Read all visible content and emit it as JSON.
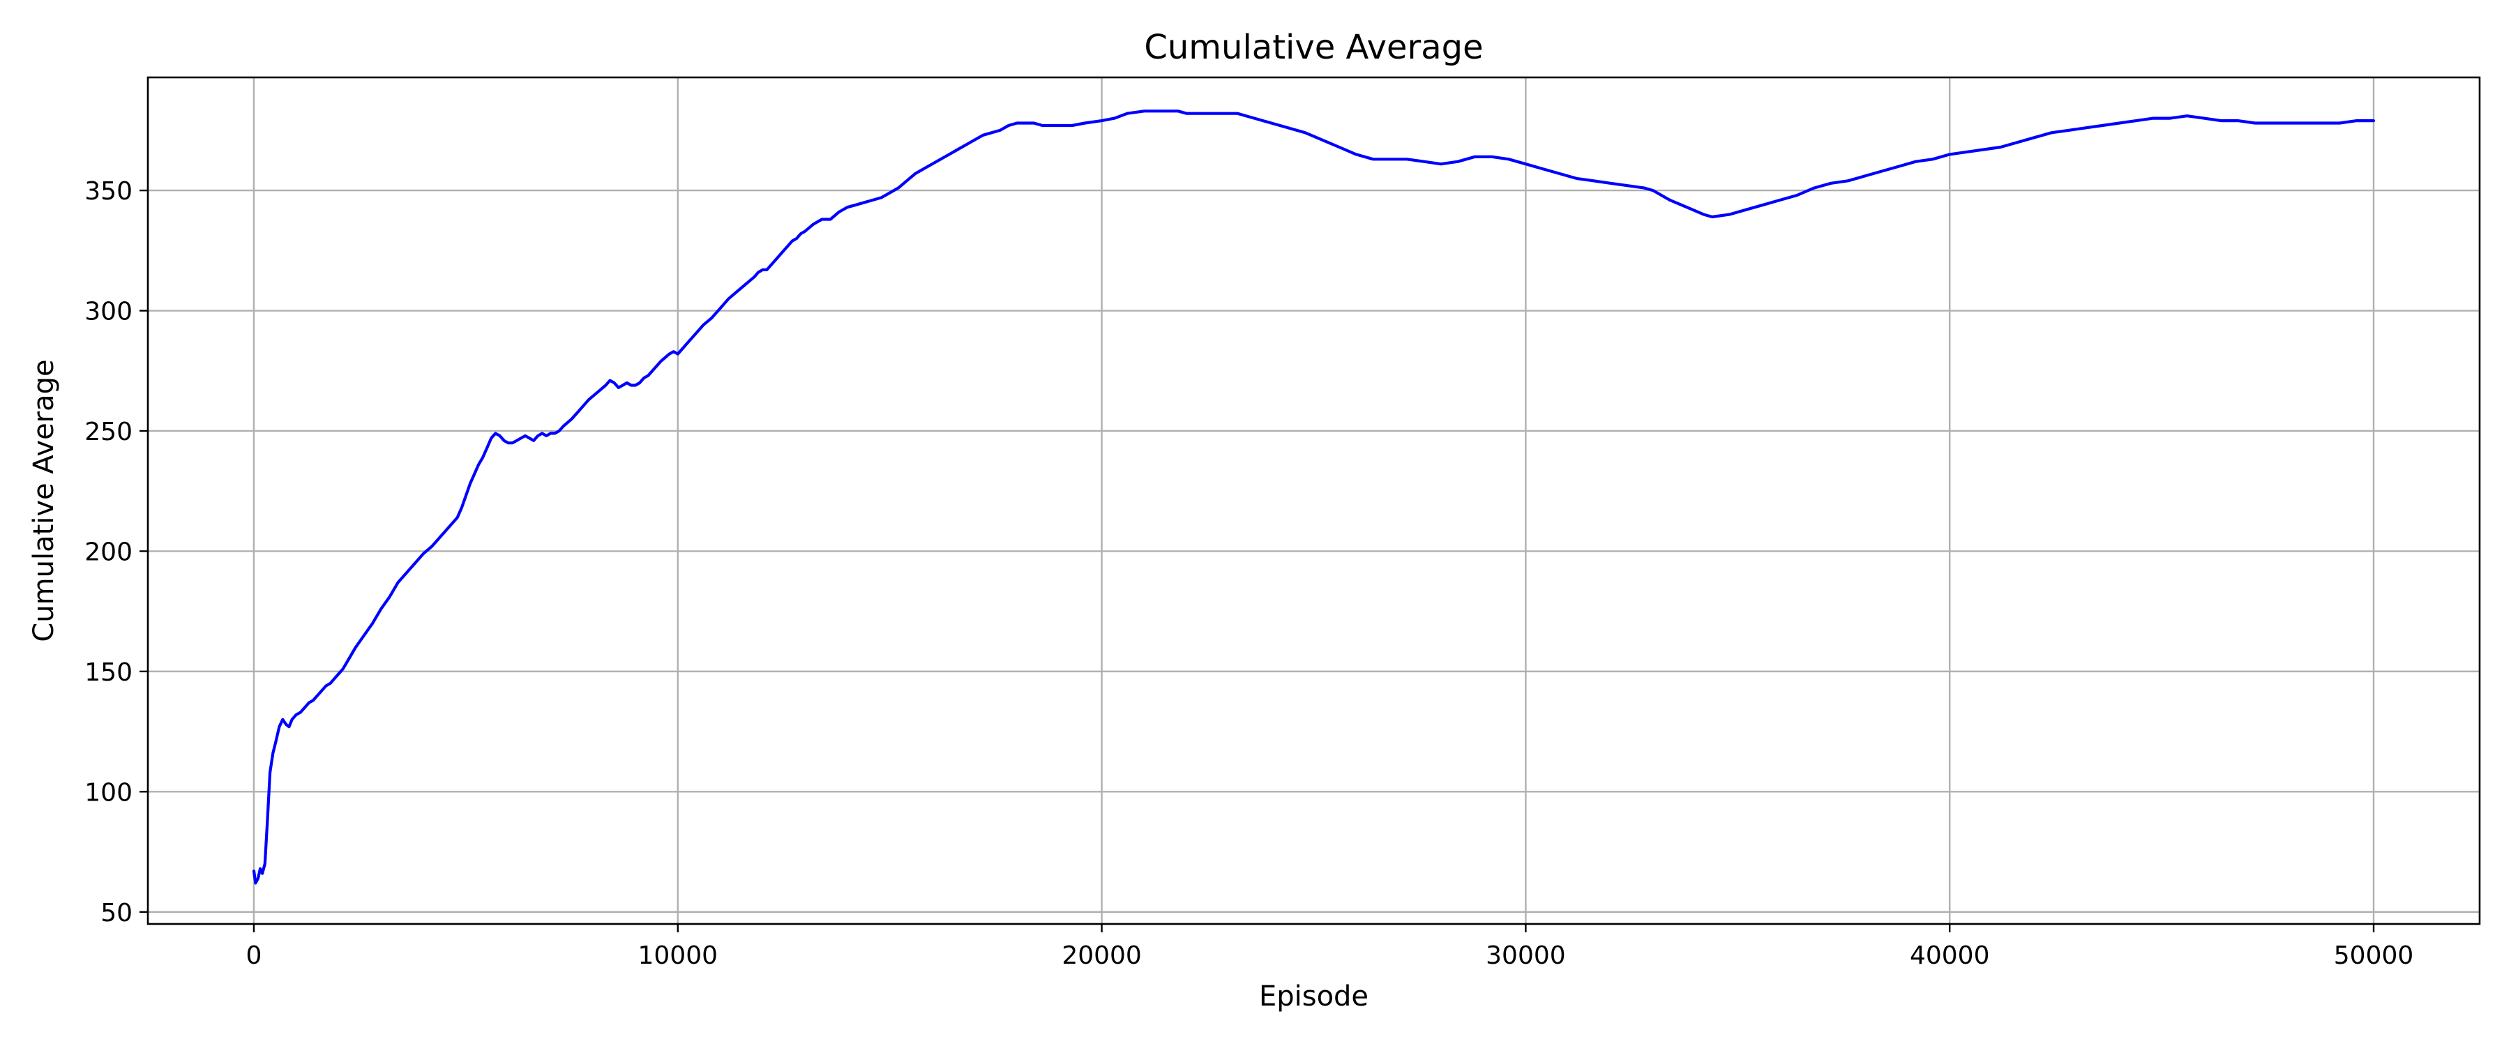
{
  "chart_data": {
    "type": "line",
    "title": "Cumulative Average",
    "xlabel": "Episode",
    "ylabel": "Cumulative Average",
    "xlim": [
      -2500,
      52500
    ],
    "ylim": [
      45,
      397
    ],
    "xticks": [
      0,
      10000,
      20000,
      30000,
      40000,
      50000
    ],
    "xtick_labels": [
      "0",
      "10000",
      "20000",
      "30000",
      "40000",
      "50000"
    ],
    "yticks": [
      50,
      100,
      150,
      200,
      250,
      300,
      350
    ],
    "ytick_labels": [
      "50",
      "100",
      "150",
      "200",
      "250",
      "300",
      "350"
    ],
    "grid": true,
    "legend": "none",
    "series": [
      {
        "color": "#0000ff",
        "points": [
          [
            0,
            67
          ],
          [
            40,
            62
          ],
          [
            100,
            64
          ],
          [
            150,
            68
          ],
          [
            200,
            66
          ],
          [
            260,
            70
          ],
          [
            320,
            88
          ],
          [
            380,
            108
          ],
          [
            450,
            116
          ],
          [
            520,
            121
          ],
          [
            600,
            127
          ],
          [
            680,
            130
          ],
          [
            760,
            128
          ],
          [
            830,
            127
          ],
          [
            900,
            130
          ],
          [
            1000,
            132
          ],
          [
            1100,
            133
          ],
          [
            1200,
            135
          ],
          [
            1300,
            137
          ],
          [
            1400,
            138
          ],
          [
            1500,
            140
          ],
          [
            1600,
            142
          ],
          [
            1700,
            144
          ],
          [
            1800,
            145
          ],
          [
            1900,
            147
          ],
          [
            2000,
            149
          ],
          [
            2100,
            151
          ],
          [
            2200,
            154
          ],
          [
            2300,
            157
          ],
          [
            2400,
            160
          ],
          [
            2600,
            165
          ],
          [
            2800,
            170
          ],
          [
            3000,
            176
          ],
          [
            3200,
            181
          ],
          [
            3400,
            187
          ],
          [
            3600,
            191
          ],
          [
            3800,
            195
          ],
          [
            4000,
            199
          ],
          [
            4200,
            202
          ],
          [
            4400,
            206
          ],
          [
            4600,
            210
          ],
          [
            4800,
            214
          ],
          [
            4900,
            218
          ],
          [
            5000,
            223
          ],
          [
            5100,
            228
          ],
          [
            5200,
            232
          ],
          [
            5300,
            236
          ],
          [
            5400,
            239
          ],
          [
            5500,
            243
          ],
          [
            5600,
            247
          ],
          [
            5700,
            249
          ],
          [
            5800,
            248
          ],
          [
            5900,
            246
          ],
          [
            6000,
            245
          ],
          [
            6100,
            245
          ],
          [
            6200,
            246
          ],
          [
            6300,
            247
          ],
          [
            6400,
            248
          ],
          [
            6500,
            247
          ],
          [
            6600,
            246
          ],
          [
            6700,
            248
          ],
          [
            6800,
            249
          ],
          [
            6900,
            248
          ],
          [
            7000,
            249
          ],
          [
            7100,
            249
          ],
          [
            7200,
            250
          ],
          [
            7300,
            252
          ],
          [
            7500,
            255
          ],
          [
            7700,
            259
          ],
          [
            7900,
            263
          ],
          [
            8100,
            266
          ],
          [
            8300,
            269
          ],
          [
            8400,
            271
          ],
          [
            8500,
            270
          ],
          [
            8600,
            268
          ],
          [
            8700,
            269
          ],
          [
            8800,
            270
          ],
          [
            8900,
            269
          ],
          [
            9000,
            269
          ],
          [
            9100,
            270
          ],
          [
            9200,
            272
          ],
          [
            9300,
            273
          ],
          [
            9400,
            275
          ],
          [
            9600,
            279
          ],
          [
            9800,
            282
          ],
          [
            9900,
            283
          ],
          [
            10000,
            282
          ],
          [
            10100,
            284
          ],
          [
            10200,
            286
          ],
          [
            10300,
            288
          ],
          [
            10400,
            290
          ],
          [
            10600,
            294
          ],
          [
            10800,
            297
          ],
          [
            11000,
            301
          ],
          [
            11200,
            305
          ],
          [
            11400,
            308
          ],
          [
            11600,
            311
          ],
          [
            11800,
            314
          ],
          [
            11900,
            316
          ],
          [
            12000,
            317
          ],
          [
            12100,
            317
          ],
          [
            12200,
            319
          ],
          [
            12400,
            323
          ],
          [
            12600,
            327
          ],
          [
            12700,
            329
          ],
          [
            12800,
            330
          ],
          [
            12900,
            332
          ],
          [
            13000,
            333
          ],
          [
            13200,
            336
          ],
          [
            13400,
            338
          ],
          [
            13600,
            338
          ],
          [
            13800,
            341
          ],
          [
            14000,
            343
          ],
          [
            14200,
            344
          ],
          [
            14400,
            345
          ],
          [
            14600,
            346
          ],
          [
            14800,
            347
          ],
          [
            15000,
            349
          ],
          [
            15200,
            351
          ],
          [
            15400,
            354
          ],
          [
            15600,
            357
          ],
          [
            15800,
            359
          ],
          [
            16000,
            361
          ],
          [
            16200,
            363
          ],
          [
            16400,
            365
          ],
          [
            16600,
            367
          ],
          [
            16800,
            369
          ],
          [
            17000,
            371
          ],
          [
            17200,
            373
          ],
          [
            17400,
            374
          ],
          [
            17600,
            375
          ],
          [
            17800,
            377
          ],
          [
            18000,
            378
          ],
          [
            18200,
            378
          ],
          [
            18400,
            378
          ],
          [
            18600,
            377
          ],
          [
            18800,
            377
          ],
          [
            19000,
            377
          ],
          [
            19300,
            377
          ],
          [
            19600,
            378
          ],
          [
            20000,
            379
          ],
          [
            20300,
            380
          ],
          [
            20600,
            382
          ],
          [
            21000,
            383
          ],
          [
            21400,
            383
          ],
          [
            21800,
            383
          ],
          [
            22000,
            382
          ],
          [
            22400,
            382
          ],
          [
            22800,
            382
          ],
          [
            23200,
            382
          ],
          [
            23600,
            380
          ],
          [
            24000,
            378
          ],
          [
            24400,
            376
          ],
          [
            24800,
            374
          ],
          [
            25200,
            371
          ],
          [
            25600,
            368
          ],
          [
            26000,
            365
          ],
          [
            26400,
            363
          ],
          [
            26800,
            363
          ],
          [
            27200,
            363
          ],
          [
            27600,
            362
          ],
          [
            28000,
            361
          ],
          [
            28400,
            362
          ],
          [
            28800,
            364
          ],
          [
            29200,
            364
          ],
          [
            29600,
            363
          ],
          [
            30000,
            361
          ],
          [
            30400,
            359
          ],
          [
            30800,
            357
          ],
          [
            31200,
            355
          ],
          [
            31600,
            354
          ],
          [
            32000,
            353
          ],
          [
            32400,
            352
          ],
          [
            32800,
            351
          ],
          [
            33000,
            350
          ],
          [
            33400,
            346
          ],
          [
            33800,
            343
          ],
          [
            34200,
            340
          ],
          [
            34400,
            339
          ],
          [
            34800,
            340
          ],
          [
            35200,
            342
          ],
          [
            35600,
            344
          ],
          [
            36000,
            346
          ],
          [
            36400,
            348
          ],
          [
            36800,
            351
          ],
          [
            37200,
            353
          ],
          [
            37600,
            354
          ],
          [
            38000,
            356
          ],
          [
            38400,
            358
          ],
          [
            38800,
            360
          ],
          [
            39200,
            362
          ],
          [
            39600,
            363
          ],
          [
            40000,
            365
          ],
          [
            40400,
            366
          ],
          [
            40800,
            367
          ],
          [
            41200,
            368
          ],
          [
            41600,
            370
          ],
          [
            42000,
            372
          ],
          [
            42400,
            374
          ],
          [
            42800,
            375
          ],
          [
            43200,
            376
          ],
          [
            43600,
            377
          ],
          [
            44000,
            378
          ],
          [
            44400,
            379
          ],
          [
            44800,
            380
          ],
          [
            45200,
            380
          ],
          [
            45600,
            381
          ],
          [
            46000,
            380
          ],
          [
            46400,
            379
          ],
          [
            46800,
            379
          ],
          [
            47200,
            378
          ],
          [
            47600,
            378
          ],
          [
            48000,
            378
          ],
          [
            48400,
            378
          ],
          [
            48800,
            378
          ],
          [
            49200,
            378
          ],
          [
            49600,
            379
          ],
          [
            50000,
            379
          ]
        ]
      }
    ]
  }
}
